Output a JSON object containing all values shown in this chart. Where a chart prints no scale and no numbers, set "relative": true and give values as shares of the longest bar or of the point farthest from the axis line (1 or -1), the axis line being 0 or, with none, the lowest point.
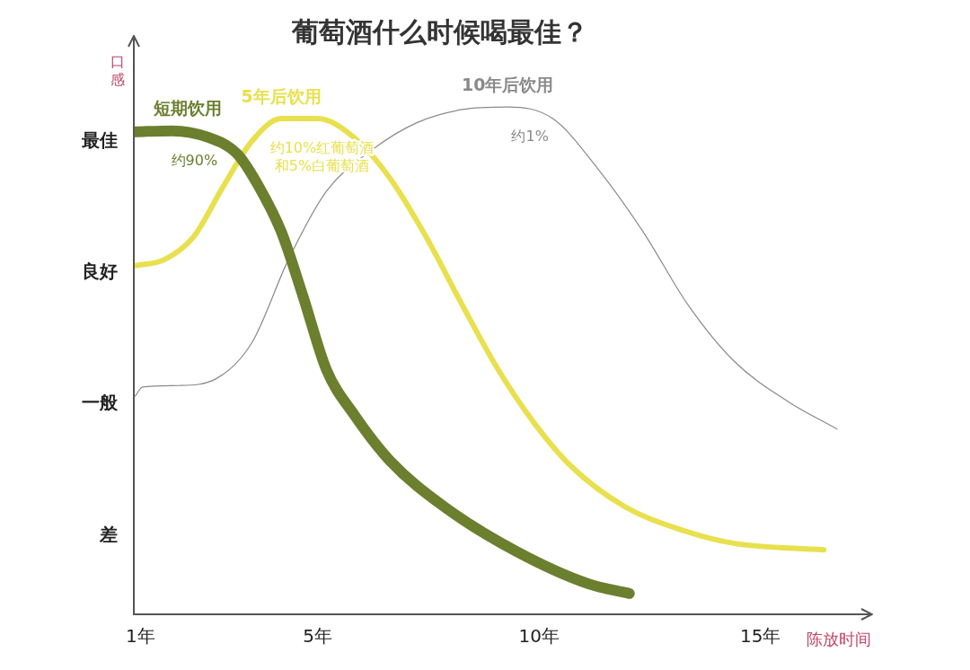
{
  "chart_data": {
    "type": "line",
    "title": "葡萄酒什么时候喝最佳？",
    "xlabel": "陈放时间",
    "ylabel": "口感",
    "relative": true,
    "xlim": [
      0.85,
      17.5
    ],
    "xticks": [
      {
        "value": 1,
        "label": "1年"
      },
      {
        "value": 5,
        "label": "5年"
      },
      {
        "value": 10,
        "label": "10年"
      },
      {
        "value": 15,
        "label": "15年"
      }
    ],
    "grid": false,
    "legend": false,
    "marker": "none",
    "line_style": "solid",
    "series": [
      {
        "name": "短期饮用",
        "color": "#6b7f2f",
        "x": [
          0.88,
          1.71,
          2.53,
          3.19,
          3.68,
          4.18,
          4.67,
          5.2,
          5.82,
          6.63,
          7.86,
          9.49,
          11.12,
          12.04
        ],
        "values": [
          0.951,
          0.953,
          0.94,
          0.907,
          0.842,
          0.754,
          0.627,
          0.482,
          0.394,
          0.303,
          0.212,
          0.124,
          0.06,
          0.041
        ]
      },
      {
        "name": "5年后饮用",
        "color": "#e8e04e",
        "x": [
          0.88,
          1.54,
          2.2,
          2.86,
          3.52,
          4.18,
          5,
          5.82,
          6.63,
          7.45,
          8.27,
          9.08,
          9.9,
          10.71,
          11.94,
          13.16,
          14.39,
          16.43
        ],
        "values": [
          0.687,
          0.699,
          0.744,
          0.842,
          0.933,
          0.977,
          0.977,
          0.94,
          0.86,
          0.744,
          0.609,
          0.482,
          0.376,
          0.293,
          0.212,
          0.168,
          0.14,
          0.127
        ]
      },
      {
        "name": "10年后饮用",
        "color": "#8a8a8a",
        "x": [
          0.88,
          1.05,
          1.87,
          2.7,
          3.52,
          4.34,
          5.2,
          6.22,
          7.24,
          8.27,
          9.29,
          10.31,
          11.33,
          12.35,
          13.37,
          14.39,
          15.61,
          16.73
        ],
        "values": [
          0.43,
          0.448,
          0.451,
          0.464,
          0.536,
          0.699,
          0.834,
          0.915,
          0.969,
          0.995,
          1,
          0.977,
          0.878,
          0.754,
          0.609,
          0.5,
          0.42,
          0.365
        ]
      }
    ],
    "annotations": [
      "差",
      "一般",
      "良好",
      "最佳",
      "约90%",
      "约10%红葡萄酒和5%白葡萄酒",
      "约1%"
    ]
  }
}
